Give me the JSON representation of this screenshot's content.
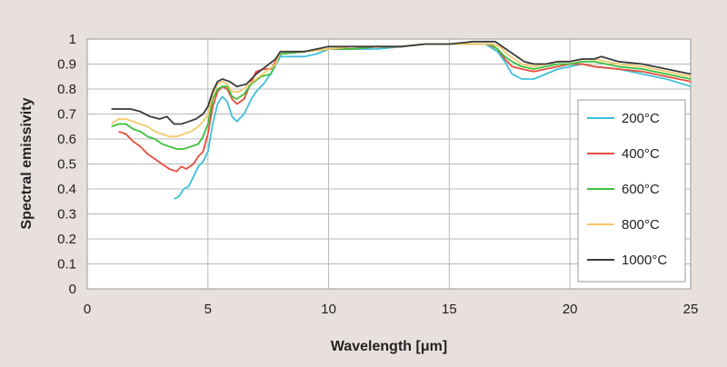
{
  "chart_data": {
    "type": "line",
    "title": "",
    "xlabel": "Wavelength [μm]",
    "ylabel": "Spectral emissivity",
    "xlim": [
      0,
      25
    ],
    "ylim": [
      0,
      1
    ],
    "x_ticks": [
      "0",
      "5",
      "10",
      "15",
      "20",
      "25"
    ],
    "y_ticks": [
      "0",
      "0.1",
      "0.2",
      "0.3",
      "0.4",
      "0.5",
      "0.6",
      "0.7",
      "0.8",
      "0.9",
      "1"
    ],
    "grid": true,
    "legend_position": "right",
    "series": [
      {
        "name": "200°C",
        "color": "#3fc0dc",
        "points": [
          [
            3.6,
            0.36
          ],
          [
            3.8,
            0.37
          ],
          [
            4.0,
            0.4
          ],
          [
            4.2,
            0.41
          ],
          [
            4.4,
            0.45
          ],
          [
            4.6,
            0.49
          ],
          [
            4.8,
            0.51
          ],
          [
            5.0,
            0.55
          ],
          [
            5.2,
            0.66
          ],
          [
            5.4,
            0.74
          ],
          [
            5.6,
            0.77
          ],
          [
            5.8,
            0.75
          ],
          [
            6.0,
            0.69
          ],
          [
            6.2,
            0.67
          ],
          [
            6.5,
            0.7
          ],
          [
            6.8,
            0.76
          ],
          [
            7.0,
            0.79
          ],
          [
            7.3,
            0.82
          ],
          [
            7.6,
            0.86
          ],
          [
            8.0,
            0.93
          ],
          [
            8.5,
            0.93
          ],
          [
            9.0,
            0.93
          ],
          [
            9.5,
            0.94
          ],
          [
            10,
            0.96
          ],
          [
            11,
            0.96
          ],
          [
            12,
            0.96
          ],
          [
            13,
            0.97
          ],
          [
            14,
            0.98
          ],
          [
            15,
            0.98
          ],
          [
            16,
            0.98
          ],
          [
            16.5,
            0.98
          ],
          [
            17.0,
            0.95
          ],
          [
            17.3,
            0.91
          ],
          [
            17.6,
            0.86
          ],
          [
            18.0,
            0.84
          ],
          [
            18.5,
            0.84
          ],
          [
            19.0,
            0.86
          ],
          [
            19.5,
            0.88
          ],
          [
            20.0,
            0.89
          ],
          [
            20.5,
            0.9
          ],
          [
            21.0,
            0.89
          ],
          [
            22.0,
            0.88
          ],
          [
            23.0,
            0.86
          ],
          [
            24.0,
            0.84
          ],
          [
            25,
            0.81
          ]
        ]
      },
      {
        "name": "400°C",
        "color": "#e84c3d",
        "points": [
          [
            1.3,
            0.63
          ],
          [
            1.6,
            0.62
          ],
          [
            1.9,
            0.59
          ],
          [
            2.2,
            0.57
          ],
          [
            2.5,
            0.54
          ],
          [
            2.8,
            0.52
          ],
          [
            3.1,
            0.5
          ],
          [
            3.4,
            0.48
          ],
          [
            3.7,
            0.47
          ],
          [
            3.9,
            0.49
          ],
          [
            4.1,
            0.48
          ],
          [
            4.4,
            0.5
          ],
          [
            4.6,
            0.53
          ],
          [
            4.8,
            0.55
          ],
          [
            5.0,
            0.62
          ],
          [
            5.2,
            0.73
          ],
          [
            5.4,
            0.79
          ],
          [
            5.6,
            0.81
          ],
          [
            5.8,
            0.8
          ],
          [
            6.0,
            0.76
          ],
          [
            6.2,
            0.74
          ],
          [
            6.5,
            0.76
          ],
          [
            6.8,
            0.83
          ],
          [
            7.0,
            0.87
          ],
          [
            7.3,
            0.88
          ],
          [
            7.6,
            0.88
          ],
          [
            8.0,
            0.94
          ],
          [
            9,
            0.95
          ],
          [
            10,
            0.96
          ],
          [
            11,
            0.96
          ],
          [
            12,
            0.97
          ],
          [
            13,
            0.97
          ],
          [
            14,
            0.98
          ],
          [
            15,
            0.98
          ],
          [
            16,
            0.98
          ],
          [
            16.6,
            0.98
          ],
          [
            17.0,
            0.96
          ],
          [
            17.3,
            0.92
          ],
          [
            17.6,
            0.89
          ],
          [
            18.0,
            0.88
          ],
          [
            18.5,
            0.87
          ],
          [
            19.0,
            0.88
          ],
          [
            19.5,
            0.89
          ],
          [
            20.0,
            0.9
          ],
          [
            20.5,
            0.9
          ],
          [
            21.0,
            0.89
          ],
          [
            22.0,
            0.88
          ],
          [
            23.0,
            0.87
          ],
          [
            24.0,
            0.85
          ],
          [
            25,
            0.83
          ]
        ]
      },
      {
        "name": "600°C",
        "color": "#3cbf3c",
        "points": [
          [
            1.0,
            0.65
          ],
          [
            1.3,
            0.66
          ],
          [
            1.6,
            0.66
          ],
          [
            1.9,
            0.64
          ],
          [
            2.2,
            0.63
          ],
          [
            2.5,
            0.61
          ],
          [
            2.8,
            0.6
          ],
          [
            3.1,
            0.58
          ],
          [
            3.4,
            0.57
          ],
          [
            3.7,
            0.56
          ],
          [
            4.0,
            0.56
          ],
          [
            4.3,
            0.57
          ],
          [
            4.6,
            0.58
          ],
          [
            4.8,
            0.61
          ],
          [
            5.0,
            0.66
          ],
          [
            5.2,
            0.76
          ],
          [
            5.4,
            0.8
          ],
          [
            5.6,
            0.81
          ],
          [
            5.8,
            0.81
          ],
          [
            6.0,
            0.77
          ],
          [
            6.2,
            0.76
          ],
          [
            6.5,
            0.78
          ],
          [
            6.8,
            0.82
          ],
          [
            7.2,
            0.85
          ],
          [
            7.6,
            0.86
          ],
          [
            8.0,
            0.94
          ],
          [
            9,
            0.95
          ],
          [
            10,
            0.96
          ],
          [
            11,
            0.96
          ],
          [
            12,
            0.97
          ],
          [
            13,
            0.97
          ],
          [
            14,
            0.98
          ],
          [
            15,
            0.98
          ],
          [
            16,
            0.98
          ],
          [
            16.7,
            0.98
          ],
          [
            17.0,
            0.96
          ],
          [
            17.3,
            0.93
          ],
          [
            17.6,
            0.91
          ],
          [
            18.0,
            0.89
          ],
          [
            18.5,
            0.88
          ],
          [
            19.0,
            0.89
          ],
          [
            19.5,
            0.9
          ],
          [
            20.0,
            0.9
          ],
          [
            20.5,
            0.91
          ],
          [
            21.0,
            0.91
          ],
          [
            22.0,
            0.89
          ],
          [
            23.0,
            0.88
          ],
          [
            24.0,
            0.86
          ],
          [
            25,
            0.84
          ]
        ]
      },
      {
        "name": "800°C",
        "color": "#f5c96b",
        "points": [
          [
            1.0,
            0.66
          ],
          [
            1.3,
            0.68
          ],
          [
            1.6,
            0.68
          ],
          [
            1.9,
            0.67
          ],
          [
            2.2,
            0.66
          ],
          [
            2.5,
            0.65
          ],
          [
            2.8,
            0.63
          ],
          [
            3.1,
            0.62
          ],
          [
            3.4,
            0.61
          ],
          [
            3.7,
            0.61
          ],
          [
            4.0,
            0.62
          ],
          [
            4.3,
            0.63
          ],
          [
            4.6,
            0.65
          ],
          [
            4.8,
            0.67
          ],
          [
            5.0,
            0.7
          ],
          [
            5.2,
            0.78
          ],
          [
            5.4,
            0.82
          ],
          [
            5.6,
            0.83
          ],
          [
            5.8,
            0.82
          ],
          [
            6.0,
            0.79
          ],
          [
            6.3,
            0.79
          ],
          [
            6.6,
            0.81
          ],
          [
            7.0,
            0.84
          ],
          [
            7.4,
            0.87
          ],
          [
            7.8,
            0.9
          ],
          [
            8.0,
            0.95
          ],
          [
            9,
            0.95
          ],
          [
            10,
            0.96
          ],
          [
            11,
            0.97
          ],
          [
            12,
            0.97
          ],
          [
            13,
            0.97
          ],
          [
            14,
            0.98
          ],
          [
            15,
            0.98
          ],
          [
            16,
            0.98
          ],
          [
            16.8,
            0.98
          ],
          [
            17.1,
            0.97
          ],
          [
            17.4,
            0.94
          ],
          [
            17.7,
            0.92
          ],
          [
            18.0,
            0.9
          ],
          [
            18.5,
            0.89
          ],
          [
            19.0,
            0.9
          ],
          [
            19.5,
            0.91
          ],
          [
            20.0,
            0.91
          ],
          [
            20.5,
            0.92
          ],
          [
            21.0,
            0.92
          ],
          [
            22.0,
            0.9
          ],
          [
            23.0,
            0.89
          ],
          [
            24.0,
            0.87
          ],
          [
            25,
            0.85
          ]
        ]
      },
      {
        "name": "1000°C",
        "color": "#3a3a3a",
        "points": [
          [
            1.0,
            0.72
          ],
          [
            1.4,
            0.72
          ],
          [
            1.8,
            0.72
          ],
          [
            2.2,
            0.71
          ],
          [
            2.6,
            0.69
          ],
          [
            3.0,
            0.68
          ],
          [
            3.3,
            0.69
          ],
          [
            3.6,
            0.66
          ],
          [
            3.9,
            0.66
          ],
          [
            4.2,
            0.67
          ],
          [
            4.5,
            0.68
          ],
          [
            4.8,
            0.7
          ],
          [
            5.0,
            0.73
          ],
          [
            5.2,
            0.79
          ],
          [
            5.4,
            0.83
          ],
          [
            5.6,
            0.84
          ],
          [
            5.9,
            0.83
          ],
          [
            6.2,
            0.81
          ],
          [
            6.6,
            0.82
          ],
          [
            7.0,
            0.86
          ],
          [
            7.4,
            0.89
          ],
          [
            7.8,
            0.92
          ],
          [
            8.0,
            0.95
          ],
          [
            9,
            0.95
          ],
          [
            10,
            0.97
          ],
          [
            11,
            0.97
          ],
          [
            12,
            0.97
          ],
          [
            13,
            0.97
          ],
          [
            14,
            0.98
          ],
          [
            15,
            0.98
          ],
          [
            16,
            0.99
          ],
          [
            16.9,
            0.99
          ],
          [
            17.2,
            0.97
          ],
          [
            17.5,
            0.95
          ],
          [
            17.8,
            0.93
          ],
          [
            18.1,
            0.91
          ],
          [
            18.5,
            0.9
          ],
          [
            19.0,
            0.9
          ],
          [
            19.5,
            0.91
          ],
          [
            20.0,
            0.91
          ],
          [
            20.5,
            0.92
          ],
          [
            21.0,
            0.92
          ],
          [
            21.3,
            0.93
          ],
          [
            22.0,
            0.91
          ],
          [
            23.0,
            0.9
          ],
          [
            24.0,
            0.88
          ],
          [
            25,
            0.86
          ]
        ]
      }
    ]
  }
}
